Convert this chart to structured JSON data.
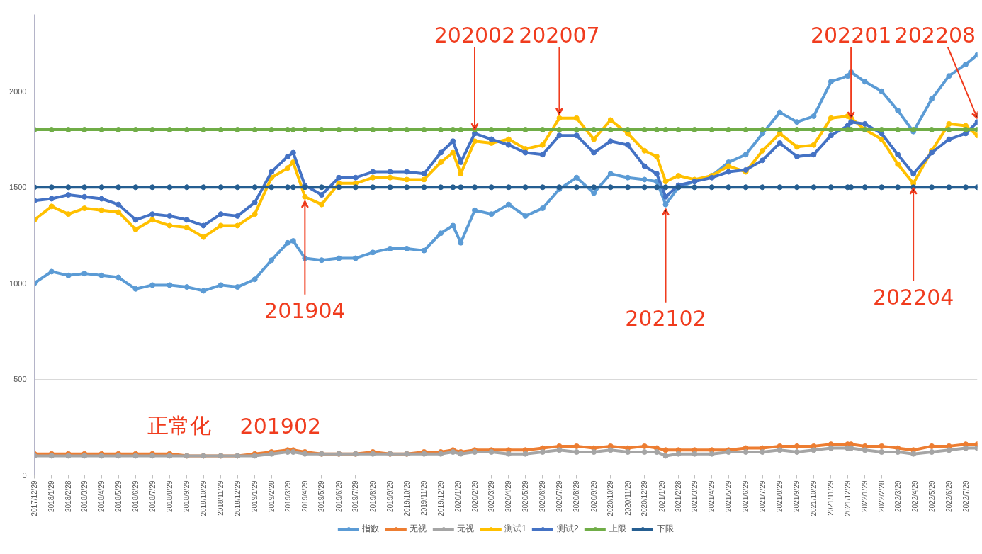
{
  "chart_data": {
    "type": "line",
    "marker": "circle",
    "grid": "y",
    "legend": "bottom",
    "x": [
      "2017-12-29",
      "2018-01-29",
      "2018-02-28",
      "2018-03-29",
      "2018-04-29",
      "2018-05-29",
      "2018-06-29",
      "2018-07-29",
      "2018-08-29",
      "2018-09-29",
      "2018-10-29",
      "2018-11-29",
      "2018-12-29",
      "2019-01-29",
      "2019-02-28",
      "2019-03-29",
      "2019-04-08",
      "2019-04-29",
      "2019-05-29",
      "2019-06-29",
      "2019-07-29",
      "2019-08-29",
      "2019-09-29",
      "2019-10-29",
      "2019-11-29",
      "2019-12-29",
      "2020-01-20",
      "2020-02-03",
      "2020-02-28",
      "2020-03-29",
      "2020-04-29",
      "2020-05-29",
      "2020-06-29",
      "2020-07-29",
      "2020-08-29",
      "2020-09-29",
      "2020-10-29",
      "2020-11-29",
      "2020-12-29",
      "2021-01-20",
      "2021-02-05",
      "2021-02-28",
      "2021-03-29",
      "2021-04-29",
      "2021-05-29",
      "2021-06-29",
      "2021-07-29",
      "2021-08-29",
      "2021-09-29",
      "2021-10-29",
      "2021-11-29",
      "2021-12-29",
      "2022-01-04",
      "2022-01-29",
      "2022-02-28",
      "2022-03-29",
      "2022-04-26",
      "2022-05-29",
      "2022-06-29",
      "2022-07-29",
      "2022-08-19"
    ],
    "xlim": [
      "2017-12-29",
      "2022-08-19"
    ],
    "xticks": [
      {
        "value": "2017-12-29",
        "label": "2017/12/29"
      },
      {
        "value": "2018-01-29",
        "label": "2018/1/29"
      },
      {
        "value": "2018-02-28",
        "label": "2018/2/28"
      },
      {
        "value": "2018-03-29",
        "label": "2018/3/29"
      },
      {
        "value": "2018-04-29",
        "label": "2018/4/29"
      },
      {
        "value": "2018-05-29",
        "label": "2018/5/29"
      },
      {
        "value": "2018-06-29",
        "label": "2018/6/29"
      },
      {
        "value": "2018-07-29",
        "label": "2018/7/29"
      },
      {
        "value": "2018-08-29",
        "label": "2018/8/29"
      },
      {
        "value": "2018-09-29",
        "label": "2018/9/29"
      },
      {
        "value": "2018-10-29",
        "label": "2018/10/29"
      },
      {
        "value": "2018-11-29",
        "label": "2018/11/29"
      },
      {
        "value": "2018-12-29",
        "label": "2018/12/29"
      },
      {
        "value": "2019-01-29",
        "label": "2019/1/29"
      },
      {
        "value": "2019-02-28",
        "label": "2019/2/28"
      },
      {
        "value": "2019-03-29",
        "label": "2019/3/29"
      },
      {
        "value": "2019-04-29",
        "label": "2019/4/29"
      },
      {
        "value": "2019-05-29",
        "label": "2019/5/29"
      },
      {
        "value": "2019-06-29",
        "label": "2019/6/29"
      },
      {
        "value": "2019-07-29",
        "label": "2019/7/29"
      },
      {
        "value": "2019-08-29",
        "label": "2019/8/29"
      },
      {
        "value": "2019-09-29",
        "label": "2019/9/29"
      },
      {
        "value": "2019-10-29",
        "label": "2019/10/29"
      },
      {
        "value": "2019-11-29",
        "label": "2019/11/29"
      },
      {
        "value": "2019-12-29",
        "label": "2019/12/29"
      },
      {
        "value": "2020-01-29",
        "label": "2020/1/29"
      },
      {
        "value": "2020-02-29",
        "label": "2020/2/29"
      },
      {
        "value": "2020-03-29",
        "label": "2020/3/29"
      },
      {
        "value": "2020-04-29",
        "label": "2020/4/29"
      },
      {
        "value": "2020-05-29",
        "label": "2020/5/29"
      },
      {
        "value": "2020-06-29",
        "label": "2020/6/29"
      },
      {
        "value": "2020-07-29",
        "label": "2020/7/29"
      },
      {
        "value": "2020-08-29",
        "label": "2020/8/29"
      },
      {
        "value": "2020-09-29",
        "label": "2020/9/29"
      },
      {
        "value": "2020-10-29",
        "label": "2020/10/29"
      },
      {
        "value": "2020-11-29",
        "label": "2020/11/29"
      },
      {
        "value": "2020-12-29",
        "label": "2020/12/29"
      },
      {
        "value": "2021-01-29",
        "label": "2021/1/29"
      },
      {
        "value": "2021-02-28",
        "label": "2021/2/28"
      },
      {
        "value": "2021-03-29",
        "label": "2021/3/29"
      },
      {
        "value": "2021-04-29",
        "label": "2021/4/29"
      },
      {
        "value": "2021-05-29",
        "label": "2021/5/29"
      },
      {
        "value": "2021-06-29",
        "label": "2021/6/29"
      },
      {
        "value": "2021-07-29",
        "label": "2021/7/29"
      },
      {
        "value": "2021-08-29",
        "label": "2021/8/29"
      },
      {
        "value": "2021-09-29",
        "label": "2021/9/29"
      },
      {
        "value": "2021-10-29",
        "label": "2021/10/29"
      },
      {
        "value": "2021-11-29",
        "label": "2021/11/29"
      },
      {
        "value": "2021-12-29",
        "label": "2021/12/29"
      },
      {
        "value": "2022-01-29",
        "label": "2022/1/29"
      },
      {
        "value": "2022-02-28",
        "label": "2022/2/28"
      },
      {
        "value": "2022-03-29",
        "label": "2022/3/29"
      },
      {
        "value": "2022-04-29",
        "label": "2022/4/29"
      },
      {
        "value": "2022-05-29",
        "label": "2022/5/29"
      },
      {
        "value": "2022-06-29",
        "label": "2022/6/29"
      },
      {
        "value": "2022-07-29",
        "label": "2022/7/29"
      }
    ],
    "ylim": [
      0,
      2400
    ],
    "yticks": [
      0,
      500,
      1000,
      1500,
      2000
    ],
    "series": [
      {
        "name": "指数",
        "color": "#5b9bd5",
        "values": [
          1000,
          1060,
          1040,
          1050,
          1040,
          1030,
          970,
          990,
          990,
          980,
          960,
          990,
          980,
          1020,
          1120,
          1210,
          1220,
          1130,
          1120,
          1130,
          1130,
          1160,
          1180,
          1180,
          1170,
          1260,
          1300,
          1210,
          1380,
          1360,
          1410,
          1350,
          1390,
          1490,
          1550,
          1470,
          1570,
          1550,
          1540,
          1530,
          1410,
          1500,
          1530,
          1560,
          1630,
          1670,
          1780,
          1890,
          1840,
          1870,
          2050,
          2080,
          2100,
          2050,
          2000,
          1900,
          1790,
          1960,
          2080,
          2140,
          2190
        ]
      },
      {
        "name": "无视",
        "color": "#ed7d31",
        "values": [
          110,
          110,
          110,
          110,
          110,
          110,
          110,
          110,
          110,
          100,
          100,
          100,
          100,
          110,
          120,
          130,
          130,
          120,
          110,
          110,
          110,
          120,
          110,
          110,
          120,
          120,
          130,
          120,
          130,
          130,
          130,
          130,
          140,
          150,
          150,
          140,
          150,
          140,
          150,
          140,
          130,
          130,
          130,
          130,
          130,
          140,
          140,
          150,
          150,
          150,
          160,
          160,
          160,
          150,
          150,
          140,
          130,
          150,
          150,
          160,
          160
        ]
      },
      {
        "name": "无视",
        "color": "#a5a5a5",
        "values": [
          100,
          100,
          100,
          100,
          100,
          100,
          100,
          100,
          100,
          100,
          100,
          100,
          100,
          100,
          110,
          120,
          120,
          110,
          110,
          110,
          110,
          110,
          110,
          110,
          110,
          110,
          120,
          110,
          120,
          120,
          110,
          110,
          120,
          130,
          120,
          120,
          130,
          120,
          120,
          120,
          100,
          110,
          110,
          110,
          120,
          120,
          120,
          130,
          120,
          130,
          140,
          140,
          140,
          130,
          120,
          120,
          110,
          120,
          130,
          140,
          140
        ]
      },
      {
        "name": "测试1",
        "color": "#ffc000",
        "values": [
          1330,
          1400,
          1360,
          1390,
          1380,
          1370,
          1280,
          1330,
          1300,
          1290,
          1240,
          1300,
          1300,
          1360,
          1550,
          1600,
          1630,
          1450,
          1410,
          1520,
          1520,
          1550,
          1550,
          1540,
          1540,
          1630,
          1680,
          1570,
          1740,
          1730,
          1750,
          1700,
          1720,
          1860,
          1860,
          1750,
          1850,
          1780,
          1690,
          1660,
          1530,
          1560,
          1540,
          1560,
          1610,
          1580,
          1690,
          1780,
          1710,
          1720,
          1860,
          1870,
          1860,
          1800,
          1750,
          1620,
          1520,
          1690,
          1830,
          1820,
          1770
        ]
      },
      {
        "name": "测试2",
        "color": "#4472c4",
        "values": [
          1430,
          1440,
          1460,
          1450,
          1440,
          1410,
          1330,
          1360,
          1350,
          1330,
          1300,
          1360,
          1350,
          1420,
          1580,
          1660,
          1680,
          1510,
          1460,
          1550,
          1550,
          1580,
          1580,
          1580,
          1570,
          1680,
          1740,
          1630,
          1780,
          1750,
          1720,
          1680,
          1670,
          1770,
          1770,
          1680,
          1740,
          1720,
          1610,
          1570,
          1450,
          1510,
          1530,
          1550,
          1580,
          1590,
          1640,
          1730,
          1660,
          1670,
          1770,
          1820,
          1840,
          1830,
          1780,
          1670,
          1570,
          1680,
          1750,
          1780,
          1840
        ]
      },
      {
        "name": "上限",
        "color": "#70ad47",
        "values": [
          1800,
          1800,
          1800,
          1800,
          1800,
          1800,
          1800,
          1800,
          1800,
          1800,
          1800,
          1800,
          1800,
          1800,
          1800,
          1800,
          1800,
          1800,
          1800,
          1800,
          1800,
          1800,
          1800,
          1800,
          1800,
          1800,
          1800,
          1800,
          1800,
          1800,
          1800,
          1800,
          1800,
          1800,
          1800,
          1800,
          1800,
          1800,
          1800,
          1800,
          1800,
          1800,
          1800,
          1800,
          1800,
          1800,
          1800,
          1800,
          1800,
          1800,
          1800,
          1800,
          1800,
          1800,
          1800,
          1800,
          1800,
          1800,
          1800,
          1800,
          1800
        ]
      },
      {
        "name": "下限",
        "color": "#255e91",
        "values": [
          1500,
          1500,
          1500,
          1500,
          1500,
          1500,
          1500,
          1500,
          1500,
          1500,
          1500,
          1500,
          1500,
          1500,
          1500,
          1500,
          1500,
          1500,
          1500,
          1500,
          1500,
          1500,
          1500,
          1500,
          1500,
          1500,
          1500,
          1500,
          1500,
          1500,
          1500,
          1500,
          1500,
          1500,
          1500,
          1500,
          1500,
          1500,
          1500,
          1500,
          1500,
          1500,
          1500,
          1500,
          1500,
          1500,
          1500,
          1500,
          1500,
          1500,
          1500,
          1500,
          1500,
          1500,
          1500,
          1500,
          1500,
          1500,
          1500,
          1500,
          1500
        ]
      }
    ],
    "annotations": [
      {
        "text": "202002",
        "x": "2020-02-28",
        "y": 1780
      },
      {
        "text": "202007",
        "x": "2020-07-29",
        "y": 1860
      },
      {
        "text": "202201",
        "x": "2022-01-04",
        "y": 1840
      },
      {
        "text": "202208",
        "x": "2022-08-19",
        "y": 1840
      },
      {
        "text": "201904",
        "x": "2019-04-29",
        "y": 1450
      },
      {
        "text": "202102",
        "x": "2021-02-05",
        "y": 1410
      },
      {
        "text": "202204",
        "x": "2022-04-26",
        "y": 1520
      },
      "正常化",
      "201902"
    ]
  }
}
